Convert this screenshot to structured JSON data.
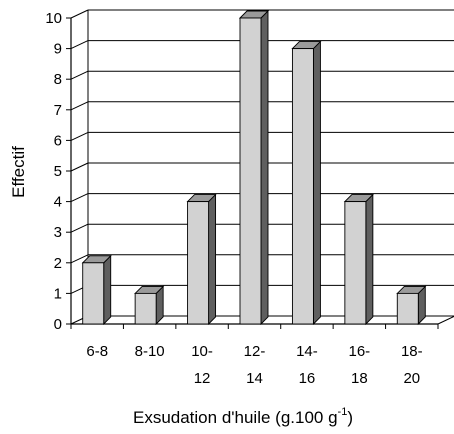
{
  "chart_data": {
    "type": "bar",
    "three_d": true,
    "categories": [
      [
        "6-8"
      ],
      [
        "8-10"
      ],
      [
        "10-",
        "12"
      ],
      [
        "12-",
        "14"
      ],
      [
        "14-",
        "16"
      ],
      [
        "16-",
        "18"
      ],
      [
        "18-",
        "20"
      ]
    ],
    "values": [
      2,
      1,
      4,
      10,
      9,
      4,
      1
    ],
    "ylabel": "Effectif",
    "xlabel": {
      "text": "Exsudation d'huile (g.100 g",
      "superscript": "-1",
      "close": ")"
    },
    "ylim": [
      0,
      10
    ],
    "yticks": [
      0,
      1,
      2,
      3,
      4,
      5,
      6,
      7,
      8,
      9,
      10
    ],
    "grid": true,
    "legend": "none",
    "colors": {
      "bar_front": "#d2d2d2",
      "bar_side": "#5f5f5f",
      "bar_top": "#9a9a9a",
      "grid": "#000000"
    }
  }
}
